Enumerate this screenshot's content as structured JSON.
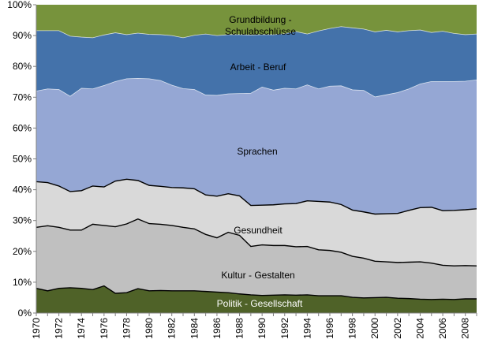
{
  "chart_data": {
    "type": "area",
    "stacked": true,
    "percent_axis": true,
    "x": [
      1970,
      1971,
      1972,
      1973,
      1974,
      1975,
      1976,
      1977,
      1978,
      1979,
      1980,
      1981,
      1982,
      1983,
      1984,
      1985,
      1986,
      1987,
      1988,
      1989,
      1990,
      1991,
      1992,
      1993,
      1994,
      1995,
      1996,
      1997,
      1998,
      1999,
      2000,
      2001,
      2002,
      2003,
      2004,
      2005,
      2006,
      2007,
      2008,
      2009
    ],
    "x_tick_labels": [
      "1970",
      "1972",
      "1974",
      "1976",
      "1978",
      "1980",
      "1982",
      "1984",
      "1986",
      "1988",
      "1990",
      "1992",
      "1994",
      "1996",
      "1998",
      "2000",
      "2002",
      "2004",
      "2006",
      "2008"
    ],
    "y_tick_labels": [
      "0%",
      "10%",
      "20%",
      "30%",
      "40%",
      "50%",
      "60%",
      "70%",
      "80%",
      "90%",
      "100%"
    ],
    "ylim": [
      0,
      100
    ],
    "grid": false,
    "series": [
      {
        "name": "Politik - Gesellschaft",
        "color": "#4f6228",
        "label_lines": [
          "Politik - Gesellschaft"
        ],
        "values": [
          8.0,
          7.2,
          8.0,
          8.2,
          8.0,
          7.6,
          8.8,
          6.4,
          6.6,
          7.9,
          7.2,
          7.3,
          7.2,
          7.2,
          7.2,
          7.0,
          6.8,
          6.6,
          6.2,
          5.9,
          5.7,
          5.8,
          5.9,
          5.8,
          5.9,
          5.6,
          5.6,
          5.6,
          5.1,
          4.9,
          5.0,
          5.1,
          4.8,
          4.7,
          4.5,
          4.4,
          4.5,
          4.4,
          4.6,
          4.6
        ]
      },
      {
        "name": "Kultur - Gestalten",
        "color": "#c0c0c0",
        "label_lines": [
          "Kultur - Gestalten"
        ],
        "values": [
          19.8,
          21.1,
          19.8,
          18.7,
          18.9,
          21.2,
          19.6,
          21.6,
          22.3,
          22.6,
          21.8,
          21.5,
          21.2,
          20.6,
          20.1,
          18.5,
          17.6,
          19.6,
          19.0,
          15.7,
          16.4,
          16.1,
          16.0,
          15.7,
          15.7,
          14.9,
          14.7,
          14.1,
          13.3,
          12.9,
          11.8,
          11.5,
          11.6,
          11.8,
          12.1,
          11.8,
          11.0,
          10.9,
          10.8,
          10.7
        ]
      },
      {
        "name": "Gesundheit",
        "color": "#d9d9d9",
        "label_lines": [
          "Gesundheit"
        ],
        "values": [
          14.8,
          14.0,
          13.4,
          12.5,
          12.8,
          12.4,
          12.5,
          14.8,
          14.5,
          12.5,
          12.4,
          12.3,
          12.3,
          12.8,
          13.0,
          12.8,
          13.5,
          12.5,
          12.8,
          13.3,
          12.9,
          13.2,
          13.5,
          14.0,
          14.8,
          15.7,
          15.7,
          15.5,
          15.0,
          15.0,
          15.3,
          15.6,
          15.9,
          16.8,
          17.6,
          18.1,
          17.7,
          18.0,
          18.1,
          18.5
        ]
      },
      {
        "name": "Sprachen",
        "color": "#95a7d4",
        "label_lines": [
          "Sprachen"
        ],
        "values": [
          29.4,
          30.4,
          31.3,
          30.9,
          33.2,
          31.5,
          32.9,
          32.3,
          32.6,
          33.1,
          34.6,
          34.3,
          33.2,
          32.2,
          32.2,
          32.4,
          32.7,
          32.4,
          33.2,
          36.4,
          38.3,
          37.2,
          37.5,
          37.2,
          37.6,
          36.5,
          37.6,
          38.5,
          39.0,
          39.4,
          38.0,
          38.6,
          39.2,
          39.4,
          40.1,
          40.8,
          41.9,
          41.8,
          41.7,
          41.8
        ]
      },
      {
        "name": "Arbeit - Beruf",
        "color": "#4472aa",
        "label_lines": [
          "Arbeit - Beruf"
        ],
        "values": [
          19.6,
          18.9,
          19.1,
          19.5,
          16.6,
          16.6,
          16.4,
          15.8,
          14.3,
          14.7,
          14.4,
          14.9,
          16.1,
          16.5,
          17.6,
          19.8,
          19.4,
          19.2,
          19.1,
          18.9,
          17.0,
          18.0,
          17.7,
          18.6,
          16.5,
          18.8,
          18.7,
          19.2,
          20.1,
          19.9,
          21.1,
          20.9,
          19.7,
          18.9,
          17.5,
          15.9,
          16.3,
          15.6,
          15.1,
          14.9
        ]
      },
      {
        "name": "Grundbildung - Schulabschlüsse",
        "color": "#77933c",
        "label_lines": [
          "Grundbildung -",
          "Schulabschlüsse"
        ],
        "values": [
          8.4,
          8.4,
          8.4,
          10.2,
          10.5,
          10.7,
          9.8,
          9.1,
          9.7,
          9.2,
          9.6,
          9.7,
          10.0,
          10.7,
          9.9,
          9.5,
          10.0,
          9.7,
          9.7,
          9.8,
          9.7,
          9.7,
          9.4,
          8.7,
          9.5,
          8.5,
          7.7,
          7.1,
          7.5,
          7.9,
          8.8,
          8.3,
          8.8,
          8.4,
          8.2,
          9.0,
          8.6,
          9.3,
          9.7,
          9.5
        ]
      }
    ]
  }
}
